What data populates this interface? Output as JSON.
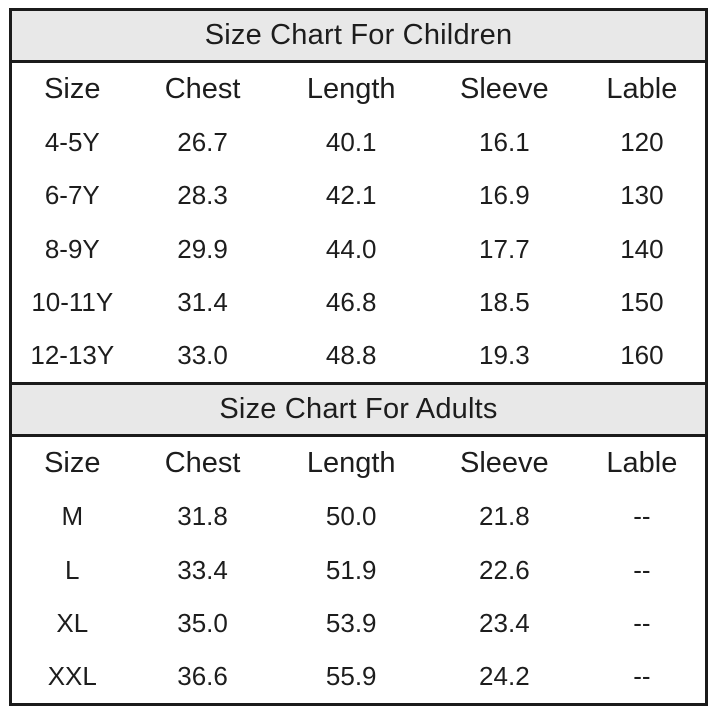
{
  "colors": {
    "band_background": "#e8e8e8",
    "border": "#1b1b1b",
    "text": "#1d1d1d",
    "page_background": "#ffffff"
  },
  "chart_data": [
    {
      "type": "table",
      "title": "Size Chart For Children",
      "columns": [
        "Size",
        "Chest",
        "Length",
        "Sleeve",
        "Lable"
      ],
      "rows": [
        [
          "4-5Y",
          "26.7",
          "40.1",
          "16.1",
          "120"
        ],
        [
          "6-7Y",
          "28.3",
          "42.1",
          "16.9",
          "130"
        ],
        [
          "8-9Y",
          "29.9",
          "44.0",
          "17.7",
          "140"
        ],
        [
          "10-11Y",
          "31.4",
          "46.8",
          "18.5",
          "150"
        ],
        [
          "12-13Y",
          "33.0",
          "48.8",
          "19.3",
          "160"
        ]
      ]
    },
    {
      "type": "table",
      "title": "Size Chart For Adults",
      "columns": [
        "Size",
        "Chest",
        "Length",
        "Sleeve",
        "Lable"
      ],
      "rows": [
        [
          "M",
          "31.8",
          "50.0",
          "21.8",
          "--"
        ],
        [
          "L",
          "33.4",
          "51.9",
          "22.6",
          "--"
        ],
        [
          "XL",
          "35.0",
          "53.9",
          "23.4",
          "--"
        ],
        [
          "XXL",
          "36.6",
          "55.9",
          "24.2",
          "--"
        ]
      ]
    }
  ]
}
